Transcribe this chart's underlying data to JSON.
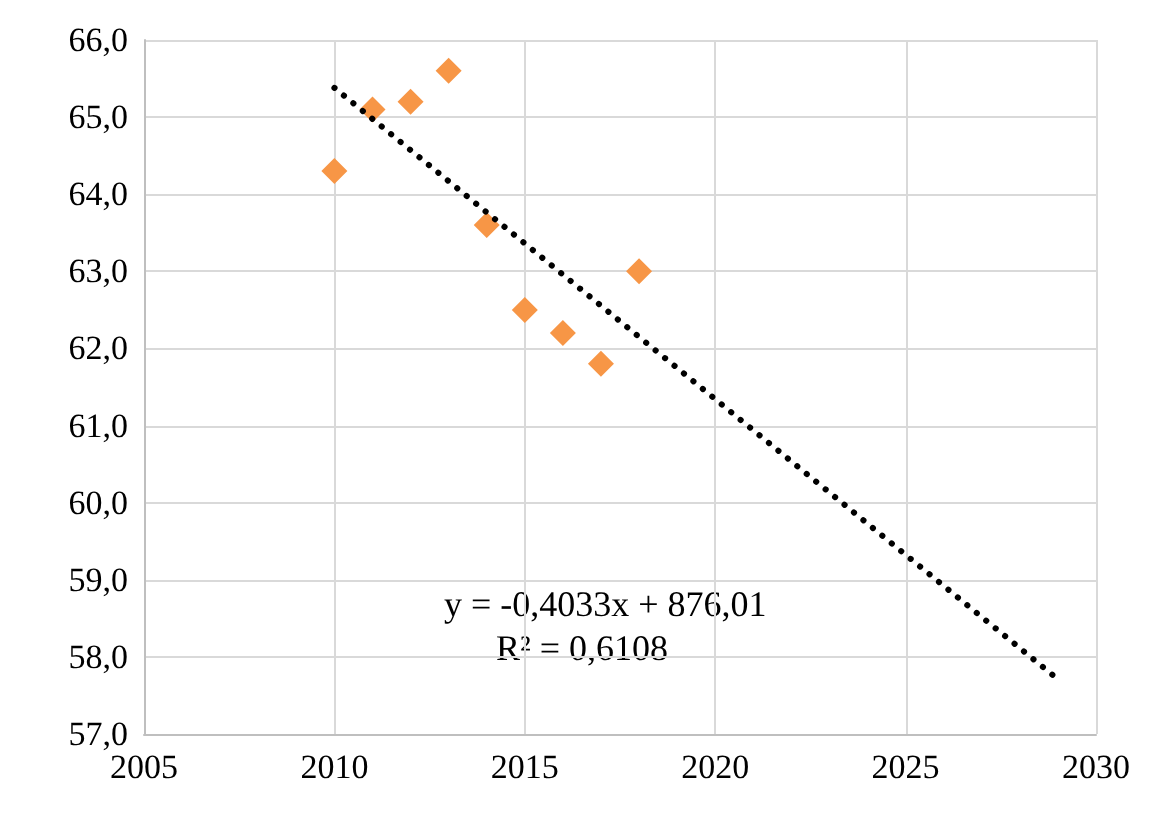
{
  "chart_data": {
    "type": "scatter",
    "x": [
      2010,
      2011,
      2012,
      2013,
      2014,
      2015,
      2016,
      2017,
      2018
    ],
    "series": [
      {
        "color": "#f79646",
        "marker": "diamond",
        "values": [
          64.3,
          65.1,
          65.2,
          65.6,
          63.6,
          62.5,
          62.2,
          61.8,
          63.0
        ]
      },
      {
        "type": "line",
        "color": "#000000",
        "line_style": "dotted",
        "marker": "none",
        "x": [
          2010,
          2029
        ],
        "values": [
          65.38,
          57.71
        ]
      }
    ],
    "xlim": [
      2005,
      2030
    ],
    "xticks": [
      2005,
      2010,
      2015,
      2020,
      2025,
      2030
    ],
    "ylim": [
      57,
      66
    ],
    "yticks": [
      {
        "value": 57,
        "label": "57,0"
      },
      {
        "value": 58,
        "label": "58,0"
      },
      {
        "value": 59,
        "label": "59,0"
      },
      {
        "value": 60,
        "label": "60,0"
      },
      {
        "value": 61,
        "label": "61,0"
      },
      {
        "value": 62,
        "label": "62,0"
      },
      {
        "value": 63,
        "label": "63,0"
      },
      {
        "value": 64,
        "label": "64,0"
      },
      {
        "value": 65,
        "label": "65,0"
      },
      {
        "value": 66,
        "label": "66,0"
      }
    ],
    "grid": true,
    "annotations": [
      "y = -0,4033x + 876,01",
      "R² = 0,6108"
    ]
  }
}
